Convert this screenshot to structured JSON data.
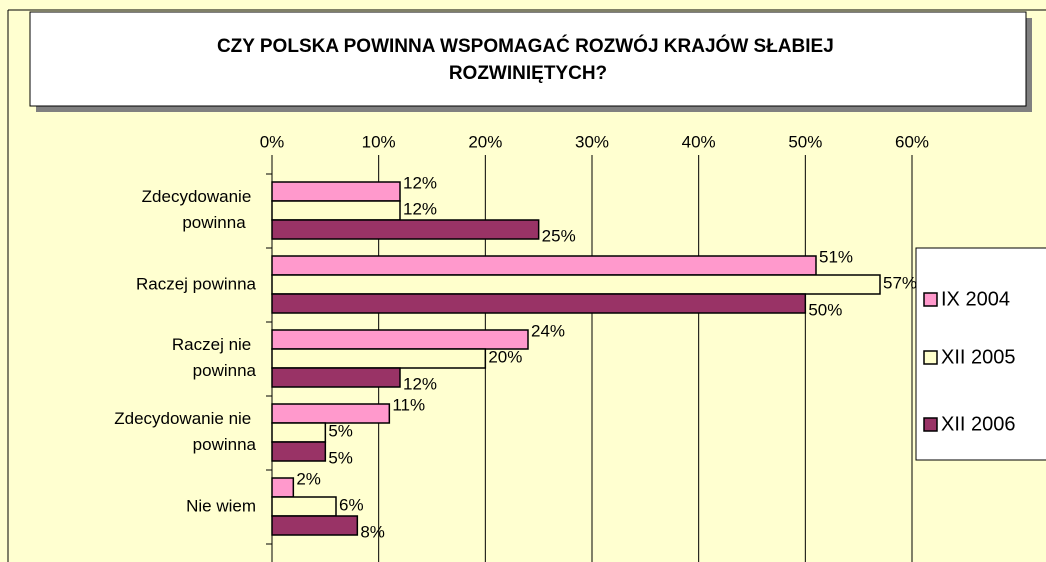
{
  "chart_data": {
    "type": "hbar",
    "title": "CZY POLSKA POWINNA WSPOMAGAĆ ROZWÓJ KRAJÓW SŁABIEJ ROZWINIĘTYCH?",
    "categories": [
      "Zdecydowanie powinna",
      "Raczej powinna",
      "Raczej nie powinna",
      "Zdecydowanie nie powinna",
      "Nie wiem"
    ],
    "series": [
      {
        "name": "IX 2004",
        "color": "#ff99cc",
        "values": [
          12,
          51,
          24,
          11,
          2
        ],
        "value_labels": [
          "12%",
          "51%",
          "24%",
          "11%",
          "2%"
        ]
      },
      {
        "name": "XII 2005",
        "color": "#ffffcc",
        "values": [
          12,
          57,
          20,
          5,
          6
        ],
        "value_labels": [
          "12%",
          "57%",
          "20%",
          "5%",
          "6%"
        ]
      },
      {
        "name": "XII 2006",
        "color": "#993366",
        "values": [
          25,
          50,
          12,
          5,
          8
        ],
        "value_labels": [
          "25%",
          "50%",
          "12%",
          "5%",
          "8%"
        ]
      }
    ],
    "xlim": [
      0,
      60
    ],
    "xticks": [
      {
        "value": 0,
        "label": "0%"
      },
      {
        "value": 10,
        "label": "10%"
      },
      {
        "value": 20,
        "label": "20%"
      },
      {
        "value": 30,
        "label": "30%"
      },
      {
        "value": 40,
        "label": "40%"
      },
      {
        "value": 50,
        "label": "50%"
      },
      {
        "value": 60,
        "label": "60%"
      }
    ],
    "grid": true,
    "legend": "right"
  }
}
